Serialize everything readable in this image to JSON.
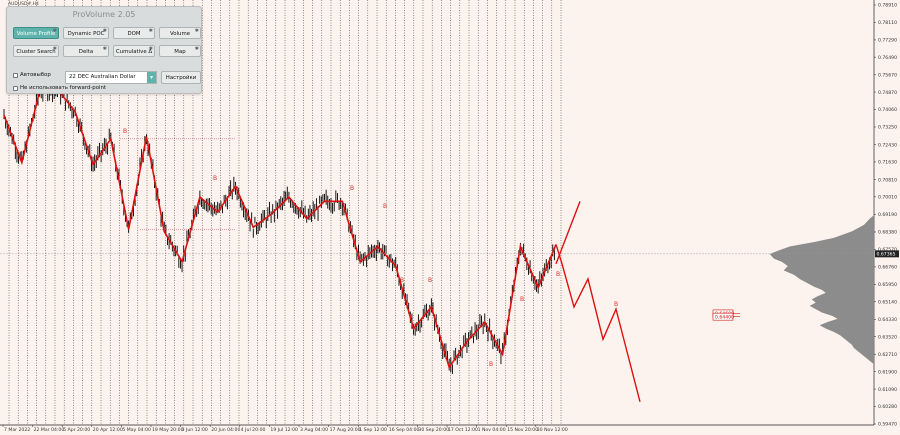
{
  "symbol_label": "AUDUSD#,H4",
  "panel": {
    "title": "ProVolume 2.05",
    "buttons": [
      {
        "label": "Volume Profile",
        "active": true
      },
      {
        "label": "Dynamic POC",
        "active": false
      },
      {
        "label": "DOM",
        "active": false
      },
      {
        "label": "Volume",
        "active": false
      },
      {
        "label": "Cluster Search",
        "active": false
      },
      {
        "label": "Delta",
        "active": false
      },
      {
        "label": "Cumulative Δ",
        "active": false
      },
      {
        "label": "Map",
        "active": false
      }
    ],
    "auto_label": "Автовыбор",
    "instrument_value": "22 DEC Australian Dollar",
    "settings_label": "Настройки",
    "forward_label": "Не использовать forward-point"
  },
  "chart_data": {
    "type": "candlestick",
    "price_levels": [
      "0.78910",
      "0.78110",
      "0.77290",
      "0.76490",
      "0.75670",
      "0.74870",
      "0.74060",
      "0.73250",
      "0.72430",
      "0.71630",
      "0.70810",
      "0.70010",
      "0.69190",
      "0.68380",
      "0.67570",
      "0.66760",
      "0.65950",
      "0.65140",
      "0.64330",
      "0.63520",
      "0.62710",
      "0.61900",
      "0.61090",
      "0.60280",
      "0.59470"
    ],
    "current_price": "0.67365",
    "time_labels": [
      "7 Mar 2022",
      "22 Mar 04:00",
      "5 Apr 20:00",
      "20 Apr 12:00",
      "5 May 04:00",
      "19 May 20:00",
      "3 Jun 12:00",
      "20 Jun 04:00",
      "4 Jul 20:00",
      "19 Jul 12:00",
      "3 Aug 04:00",
      "17 Aug 20:00",
      "1 Sep 12:00",
      "16 Sep 04:00",
      "30 Sep 20:00",
      "17 Oct 12:00",
      "1 Nov 04:00",
      "15 Nov 20:00",
      "30 Nov 12:00"
    ],
    "zigzag": [
      0.738,
      0.716,
      0.749,
      0.75,
      0.7395,
      0.715,
      0.727,
      0.685,
      0.728,
      0.684,
      0.67,
      0.7,
      0.693,
      0.705,
      0.686,
      0.692,
      0.7,
      0.69,
      0.698,
      0.698,
      0.67,
      0.677,
      0.668,
      0.639,
      0.649,
      0.621,
      0.633,
      0.642,
      0.627,
      0.677,
      0.658,
      0.678
    ],
    "projection_up": [
      0.669,
      0.698
    ],
    "projection_down": [
      0.678,
      0.669,
      0.649,
      0.662,
      0.634,
      0.648,
      0.605
    ],
    "wave_labels": [
      "B",
      "B",
      "B",
      "B",
      "B",
      "B",
      "B",
      "B",
      "B",
      "B"
    ],
    "levels_marked": [
      "0.64600",
      "0.64400"
    ],
    "colors": {
      "wave": "#dd1111",
      "candles": "#000000",
      "profile": "#808080",
      "background": "#fdf3ee"
    }
  }
}
